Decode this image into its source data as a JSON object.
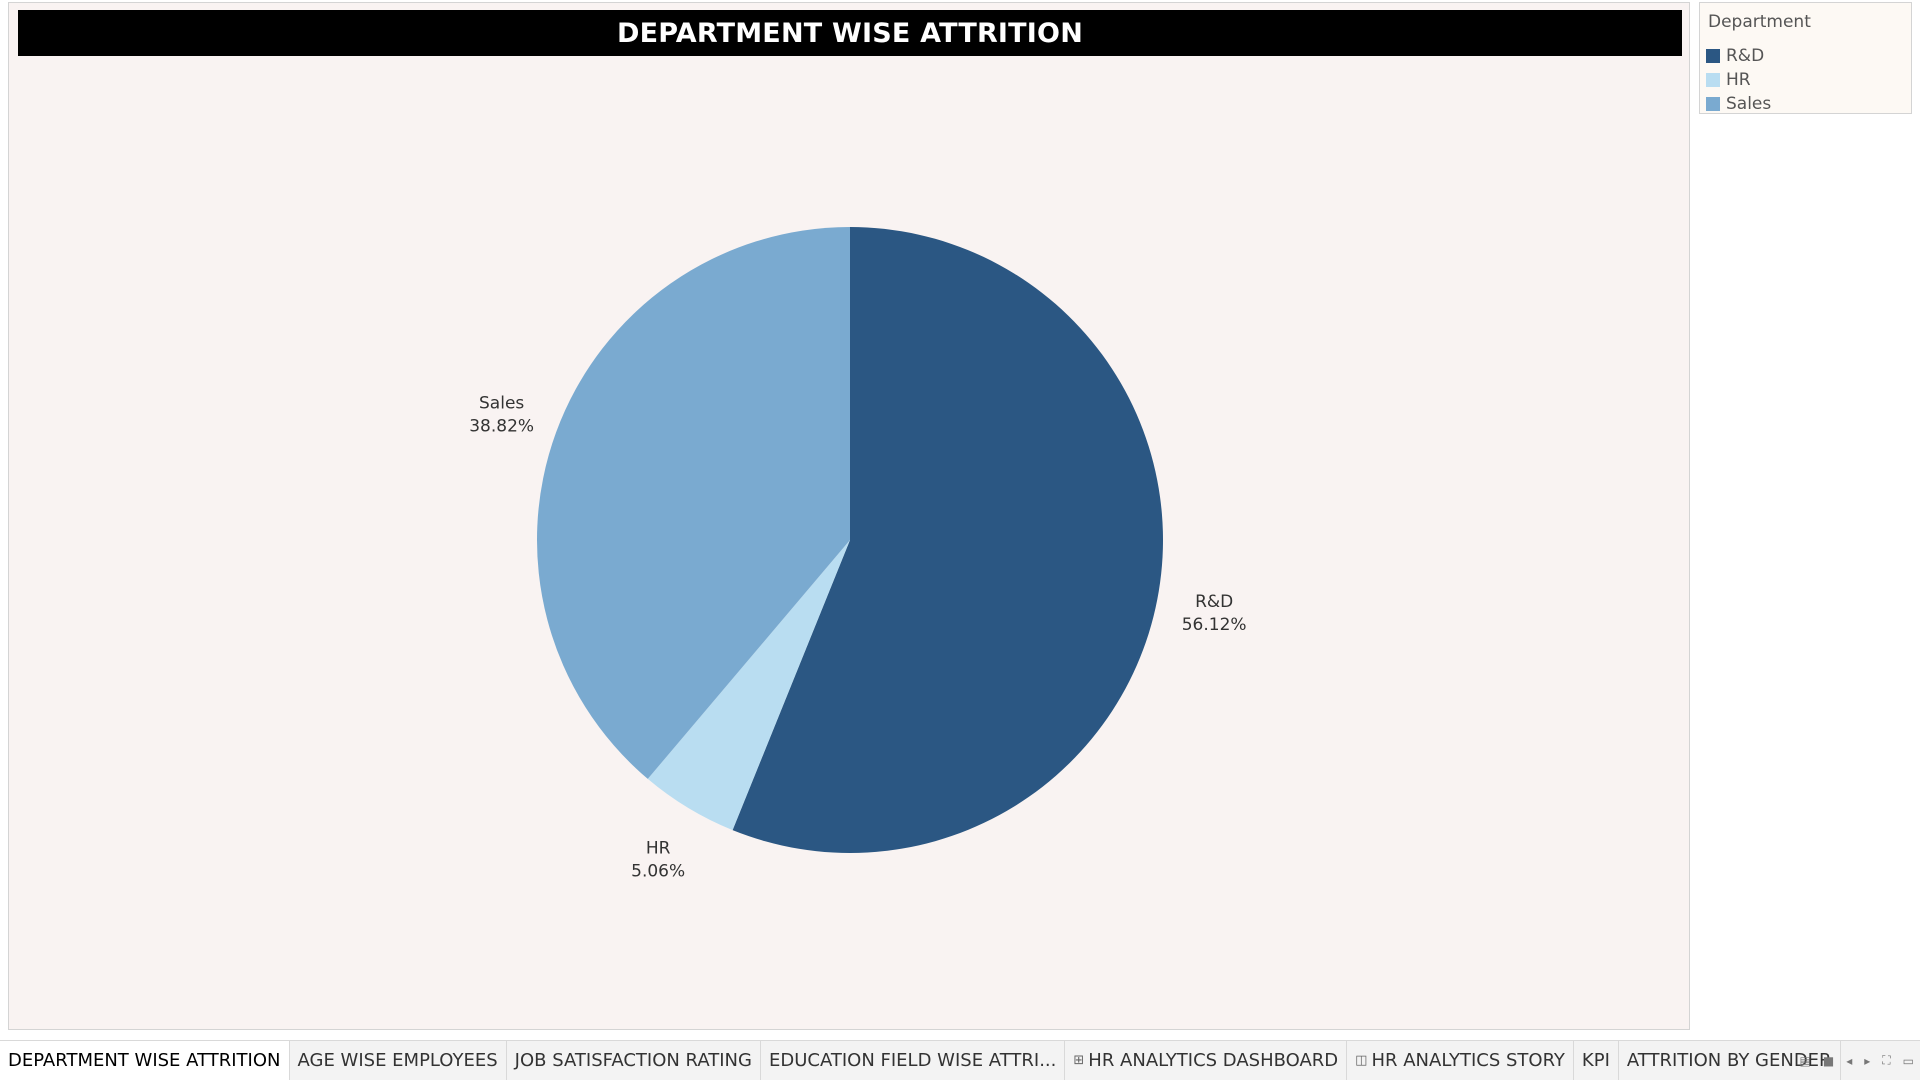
{
  "chart_data": {
    "type": "pie",
    "title": "DEPARTMENT WISE ATTRITION",
    "legend_title": "Department",
    "legend_position": "top-right",
    "slices": [
      {
        "category": "R&D",
        "value": 56.12,
        "label": "56.12%",
        "color": "#2b5783"
      },
      {
        "category": "HR",
        "value": 5.06,
        "label": "5.06%",
        "color": "#b9ddf1"
      },
      {
        "category": "Sales",
        "value": 38.82,
        "label": "38.82%",
        "color": "#7aaad0"
      }
    ]
  },
  "tabs": [
    {
      "label": "DEPARTMENT WISE ATTRITION",
      "icon": "",
      "active": true
    },
    {
      "label": "AGE WISE EMPLOYEES",
      "icon": ""
    },
    {
      "label": "JOB SATISFACTION RATING",
      "icon": ""
    },
    {
      "label": "EDUCATION FIELD WISE ATTRI...",
      "icon": ""
    },
    {
      "label": "HR ANALYTICS DASHBOARD",
      "icon": "dashboard-icon"
    },
    {
      "label": "HR ANALYTICS STORY",
      "icon": "story-icon"
    },
    {
      "label": "KPI",
      "icon": ""
    },
    {
      "label": "ATTRITION BY GENDER",
      "icon": ""
    }
  ],
  "nav_icons": [
    "tab-list-icon",
    "tab-strip-icon",
    "previous-tab-icon",
    "next-tab-icon",
    "fullscreen-icon",
    "presentation-icon"
  ]
}
